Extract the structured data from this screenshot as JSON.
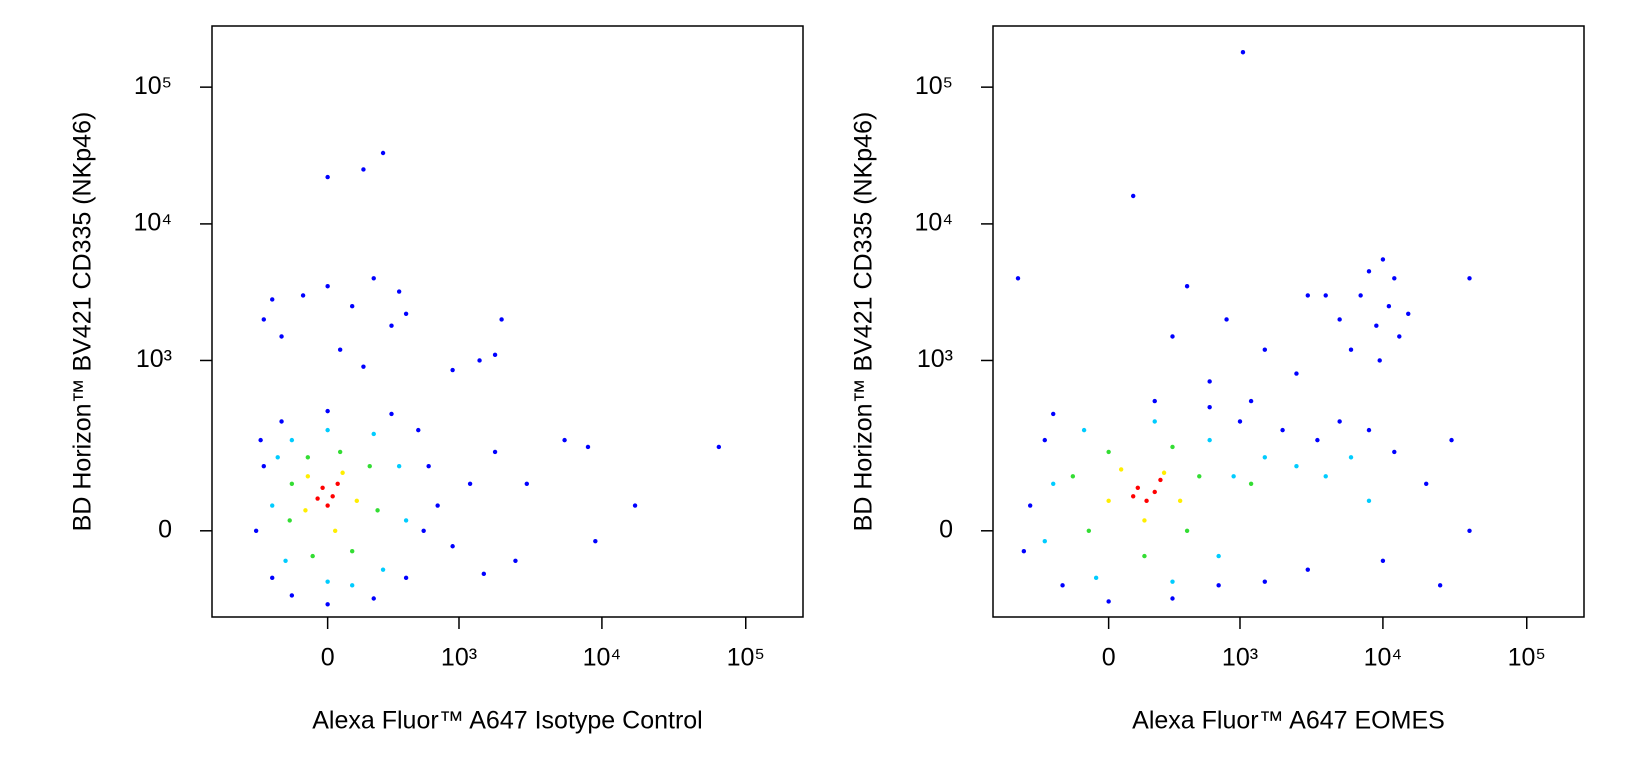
{
  "chart_data": [
    {
      "type": "scatter",
      "xlabel": "Alexa Fluor™ A647 Isotype Control",
      "ylabel": "BD Horizon™ BV421 CD335 (NKp46)",
      "xscale": "logicle",
      "yscale": "logicle",
      "xlim": [
        -770,
        250000
      ],
      "ylim": [
        -230,
        280000
      ],
      "xticks": [
        0,
        {
          "value": 1000,
          "label": "10³"
        },
        {
          "value": 10000,
          "label": "10⁴"
        },
        {
          "value": 100000,
          "label": "10⁵"
        }
      ],
      "yticks": [
        0,
        {
          "value": 1000,
          "label": "10³"
        },
        {
          "value": 10000,
          "label": "10⁴"
        },
        {
          "value": 100000,
          "label": "10⁵"
        }
      ],
      "series": [
        {
          "color": "#0000ff",
          "x": [
            -300,
            -100,
            100,
            300,
            200,
            -200,
            0,
            400,
            50,
            -250,
            150,
            350,
            0,
            150,
            250,
            1800,
            1400,
            2000,
            900,
            -350,
            -300,
            -250,
            -150,
            0,
            200,
            400,
            550,
            600,
            500,
            300,
            0,
            -200,
            -320,
            700,
            900,
            1200,
            1800,
            3000,
            5500,
            8000,
            9000,
            17000,
            65000,
            2500,
            1500
          ],
          "values": [
            2000,
            3000,
            2500,
            1800,
            4000,
            1500,
            3500,
            2200,
            1200,
            2800,
            900,
            3200,
            22000,
            25000,
            33000,
            1100,
            1000,
            2000,
            850,
            0,
            150,
            -100,
            -150,
            -180,
            -160,
            -100,
            0,
            150,
            300,
            400,
            420,
            350,
            250,
            50,
            -30,
            100,
            200,
            100,
            250,
            220,
            -20,
            50,
            220,
            -60,
            -90
          ]
        },
        {
          "color": "#00ccff",
          "x": [
            -250,
            -150,
            0,
            200,
            350,
            400,
            250,
            0,
            -180,
            -220,
            100
          ],
          "values": [
            50,
            250,
            300,
            280,
            150,
            20,
            -80,
            -110,
            -60,
            180,
            -120
          ]
        },
        {
          "color": "#33dd33",
          "x": [
            -150,
            -80,
            50,
            180,
            220,
            100,
            -60,
            -160
          ],
          "values": [
            100,
            180,
            200,
            150,
            40,
            -40,
            -50,
            20
          ]
        },
        {
          "color": "#ffee00",
          "x": [
            -80,
            60,
            120,
            30,
            -90
          ],
          "values": [
            120,
            130,
            60,
            0,
            40
          ]
        },
        {
          "color": "#ff0000",
          "x": [
            -20,
            20,
            0,
            40,
            -40
          ],
          "values": [
            90,
            70,
            50,
            100,
            65
          ]
        }
      ]
    },
    {
      "type": "scatter",
      "xlabel": "Alexa Fluor™ A647 EOMES",
      "ylabel": "BD Horizon™ BV421 CD335 (NKp46)",
      "xscale": "logicle",
      "yscale": "logicle",
      "xlim": [
        -770,
        250000
      ],
      "ylim": [
        -230,
        280000
      ],
      "xticks": [
        0,
        {
          "value": 1000,
          "label": "10³"
        },
        {
          "value": 10000,
          "label": "10⁴"
        },
        {
          "value": 100000,
          "label": "10⁵"
        }
      ],
      "yticks": [
        0,
        {
          "value": 1000,
          "label": "10³"
        },
        {
          "value": 10000,
          "label": "10⁴"
        },
        {
          "value": 100000,
          "label": "10⁵"
        }
      ],
      "series": [
        {
          "color": "#0000ff",
          "x": [
            5000,
            7000,
            9000,
            11000,
            13000,
            8000,
            6000,
            10000,
            15000,
            4000,
            9500,
            12000,
            300,
            800,
            1500,
            2500,
            3000,
            600,
            1200,
            400,
            100,
            1050,
            -500,
            40000,
            -400,
            -300,
            -200,
            0,
            300,
            700,
            1000,
            600,
            200,
            -250,
            2000,
            3500,
            5000,
            8000,
            12000,
            20000,
            30000,
            40000,
            25000,
            10000,
            3000,
            1500,
            -450
          ],
          "values": [
            2000,
            3000,
            1800,
            2500,
            1500,
            4500,
            1200,
            5500,
            2200,
            3000,
            1000,
            4000,
            1500,
            2000,
            1200,
            800,
            3000,
            700,
            500,
            3500,
            16000,
            180000,
            4000,
            4000,
            50,
            250,
            -120,
            -170,
            -160,
            -120,
            350,
            450,
            500,
            400,
            300,
            250,
            350,
            300,
            200,
            100,
            250,
            0,
            -120,
            -60,
            -80,
            -110,
            -40
          ]
        },
        {
          "color": "#00ccff",
          "x": [
            -250,
            -100,
            200,
            600,
            900,
            1500,
            2500,
            4000,
            6000,
            700,
            300,
            -50,
            -300,
            8000
          ],
          "values": [
            100,
            300,
            350,
            250,
            120,
            180,
            150,
            120,
            180,
            -50,
            -110,
            -100,
            -20,
            60
          ]
        },
        {
          "color": "#33dd33",
          "x": [
            -150,
            0,
            300,
            500,
            400,
            150,
            -80,
            1200
          ],
          "values": [
            120,
            200,
            220,
            120,
            0,
            -50,
            0,
            100
          ]
        },
        {
          "color": "#ffee00",
          "x": [
            50,
            250,
            350,
            150,
            0
          ],
          "values": [
            140,
            130,
            60,
            20,
            60
          ]
        },
        {
          "color": "#ff0000",
          "x": [
            120,
            200,
            160,
            230,
            100
          ],
          "values": [
            90,
            80,
            60,
            110,
            70
          ]
        }
      ]
    }
  ]
}
